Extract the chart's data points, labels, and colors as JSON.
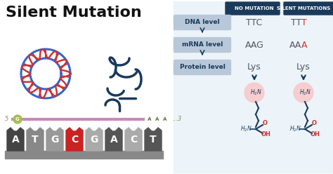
{
  "title": "Silent Mutation",
  "bg_color": "#ffffff",
  "title_color": "#111111",
  "title_fontsize": 16,
  "header_no_mutation": "NO MUTATION",
  "header_silent": "SILENT MUTATIONS",
  "header_bg_no": "#1a3a5c",
  "header_bg_silent": "#1a3a5c",
  "header_text_color": "#ffffff",
  "levels": [
    "DNA level",
    "mRNA level",
    "Protein level"
  ],
  "level_box_color": "#b8c8d8",
  "no_mutation_values": [
    "TTC",
    "AAG",
    "Lys"
  ],
  "silent_prefix": [
    "TT",
    "AA",
    "Lys"
  ],
  "silent_suffix": [
    "T",
    "A",
    ""
  ],
  "no_mutation_color": "#555566",
  "silent_normal_color": "#555566",
  "silent_changed_color": "#cc3333",
  "arrow_color": "#1a3a5c",
  "table_bg": "#e8f0f8",
  "nucleotides": [
    "A",
    "T",
    "G",
    "C",
    "G",
    "A",
    "C",
    "T"
  ],
  "nuc_colors": [
    "#444444",
    "#888888",
    "#999999",
    "#cc2222",
    "#aaaaaa",
    "#555555",
    "#aaaaaa",
    "#555555"
  ],
  "strand_color": "#cc88bb",
  "strand_dot_fill": "#aabb55",
  "strand_dot_edge": "#88aa33",
  "bottom_bar_color": "#666666",
  "pink_circle_color": "#f8c8c8",
  "h2n_color": "#1a3a5c",
  "o_color": "#cc3333",
  "oh_color": "#cc3333",
  "bond_color": "#1a3a5c",
  "dna_red": "#cc3333",
  "dna_blue": "#3366cc",
  "rna_color": "#1a3a5c"
}
